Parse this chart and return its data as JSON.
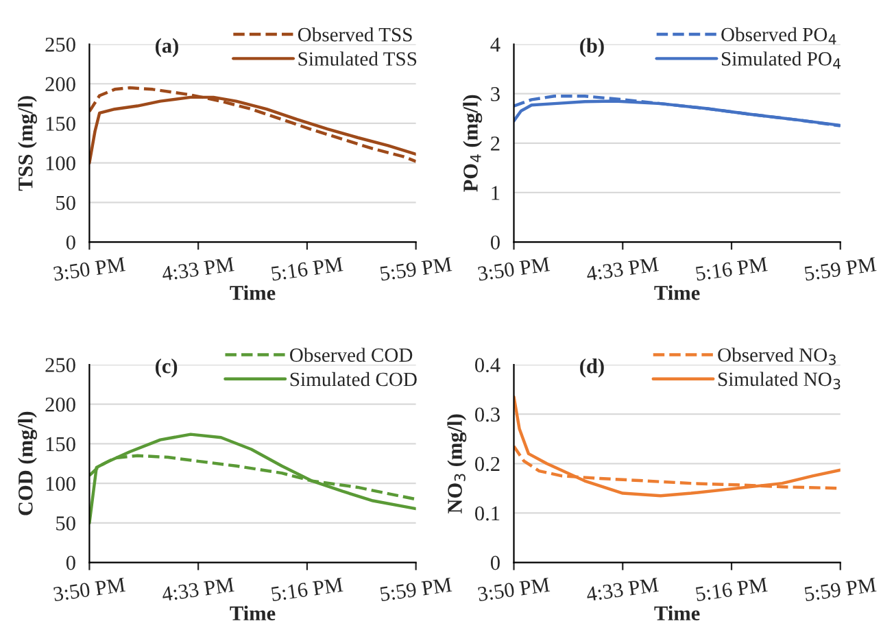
{
  "chart_data": [
    {
      "type": "line",
      "title": "(a)",
      "xlabel": "Time",
      "ylabel": "TSS (mg/l)",
      "xlim": [
        15.8333,
        17.9833
      ],
      "xticks": [
        {
          "value": 15.8333,
          "label": "3:50 PM"
        },
        {
          "value": 16.55,
          "label": "4:33 PM"
        },
        {
          "value": 17.2667,
          "label": "5:16 PM"
        },
        {
          "value": 17.9833,
          "label": "5:59 PM"
        }
      ],
      "ylim": [
        0,
        250
      ],
      "yticks": [
        0,
        50,
        100,
        150,
        200,
        250
      ],
      "grid": "y",
      "legend": "top right",
      "series": [
        {
          "name": "Observed TSS",
          "color": "#9e4a1a",
          "line_style": "dashed",
          "x": [
            15.8333,
            15.9,
            16.0,
            16.1,
            16.25,
            16.5,
            16.7,
            16.9,
            17.1,
            17.3,
            17.5,
            17.7,
            17.9,
            17.9833
          ],
          "values": [
            165,
            185,
            193,
            195,
            193,
            186,
            178,
            168,
            155,
            142,
            130,
            118,
            108,
            102
          ]
        },
        {
          "name": "Simulated TSS",
          "color": "#9e4a1a",
          "line_style": "solid",
          "x": [
            15.8333,
            15.87,
            15.9,
            16.0,
            16.15,
            16.3,
            16.5,
            16.65,
            16.8,
            17.0,
            17.2,
            17.4,
            17.6,
            17.8,
            17.9833
          ],
          "values": [
            100,
            140,
            163,
            168,
            172,
            178,
            183,
            183,
            178,
            168,
            155,
            143,
            132,
            122,
            111
          ]
        }
      ]
    },
    {
      "type": "line",
      "title": "(b)",
      "xlabel": "Time",
      "ylabel": "PO$_{4}$ (mg/l)",
      "xlim": [
        15.8333,
        17.9833
      ],
      "xticks": [
        {
          "value": 15.8333,
          "label": "3:50 PM"
        },
        {
          "value": 16.55,
          "label": "4:33 PM"
        },
        {
          "value": 17.2667,
          "label": "5:16 PM"
        },
        {
          "value": 17.9833,
          "label": "5:59 PM"
        }
      ],
      "ylim": [
        0,
        4
      ],
      "yticks": [
        0,
        1,
        2,
        3,
        4
      ],
      "grid": "y",
      "legend": "top right",
      "series": [
        {
          "name": "Observed PO$_{4}$",
          "color": "#4472c4",
          "line_style": "dashed",
          "x": [
            15.8333,
            15.95,
            16.1,
            16.3,
            16.55,
            16.8,
            17.1,
            17.4,
            17.7,
            17.9833
          ],
          "values": [
            2.75,
            2.88,
            2.95,
            2.95,
            2.88,
            2.8,
            2.7,
            2.58,
            2.47,
            2.35
          ]
        },
        {
          "name": "Simulated PO$_{4}$",
          "color": "#4472c4",
          "line_style": "solid",
          "x": [
            15.8333,
            15.88,
            15.95,
            16.1,
            16.3,
            16.5,
            16.8,
            17.1,
            17.4,
            17.7,
            17.9833
          ],
          "values": [
            2.45,
            2.65,
            2.77,
            2.8,
            2.84,
            2.85,
            2.8,
            2.7,
            2.58,
            2.47,
            2.36
          ]
        }
      ]
    },
    {
      "type": "line",
      "title": "(c)",
      "xlabel": "Time",
      "ylabel": "COD (mg/l)",
      "xlim": [
        15.8333,
        17.9833
      ],
      "xticks": [
        {
          "value": 15.8333,
          "label": "3:50 PM"
        },
        {
          "value": 16.55,
          "label": "4:33 PM"
        },
        {
          "value": 17.2667,
          "label": "5:16 PM"
        },
        {
          "value": 17.9833,
          "label": "5:59 PM"
        }
      ],
      "ylim": [
        0,
        250
      ],
      "yticks": [
        0,
        50,
        100,
        150,
        200,
        250
      ],
      "grid": "y",
      "legend": "top right",
      "series": [
        {
          "name": "Observed COD",
          "color": "#5a9a36",
          "line_style": "dashed",
          "x": [
            15.8333,
            15.9,
            16.0,
            16.15,
            16.35,
            16.55,
            16.8,
            17.1,
            17.3,
            17.6,
            17.8,
            17.9833
          ],
          "values": [
            110,
            122,
            132,
            135,
            133,
            128,
            122,
            113,
            103,
            95,
            87,
            80
          ]
        },
        {
          "name": "Simulated COD",
          "color": "#5a9a36",
          "line_style": "solid",
          "x": [
            15.8333,
            15.88,
            15.95,
            16.1,
            16.3,
            16.5,
            16.7,
            16.9,
            17.1,
            17.3,
            17.5,
            17.7,
            17.9833
          ],
          "values": [
            50,
            120,
            127,
            140,
            155,
            162,
            158,
            143,
            122,
            103,
            90,
            78,
            68
          ]
        }
      ]
    },
    {
      "type": "line",
      "title": "(d)",
      "xlabel": "Time",
      "ylabel": "NO$_{3}$ (mg/l)",
      "xlim": [
        15.8333,
        17.9833
      ],
      "xticks": [
        {
          "value": 15.8333,
          "label": "3:50 PM"
        },
        {
          "value": 16.55,
          "label": "4:33 PM"
        },
        {
          "value": 17.2667,
          "label": "5:16 PM"
        },
        {
          "value": 17.9833,
          "label": "5:59 PM"
        }
      ],
      "ylim": [
        0,
        0.4
      ],
      "yticks": [
        0,
        0.1,
        0.2,
        0.3,
        0.4
      ],
      "grid": "y",
      "legend": "top right",
      "series": [
        {
          "name": "Observed NO$_{3}$",
          "color": "#ed7d31",
          "line_style": "dashed",
          "x": [
            15.8333,
            15.9,
            16.0,
            16.15,
            16.4,
            16.7,
            17.0,
            17.3,
            17.6,
            17.9833
          ],
          "values": [
            0.235,
            0.205,
            0.185,
            0.175,
            0.17,
            0.165,
            0.16,
            0.157,
            0.153,
            0.15
          ]
        },
        {
          "name": "Simulated NO$_{3}$",
          "color": "#ed7d31",
          "line_style": "solid",
          "x": [
            15.8333,
            15.87,
            15.93,
            16.05,
            16.3,
            16.55,
            16.8,
            17.0,
            17.3,
            17.6,
            17.8,
            17.9833
          ],
          "values": [
            0.335,
            0.27,
            0.22,
            0.2,
            0.165,
            0.14,
            0.135,
            0.14,
            0.15,
            0.16,
            0.175,
            0.187
          ]
        }
      ]
    }
  ]
}
